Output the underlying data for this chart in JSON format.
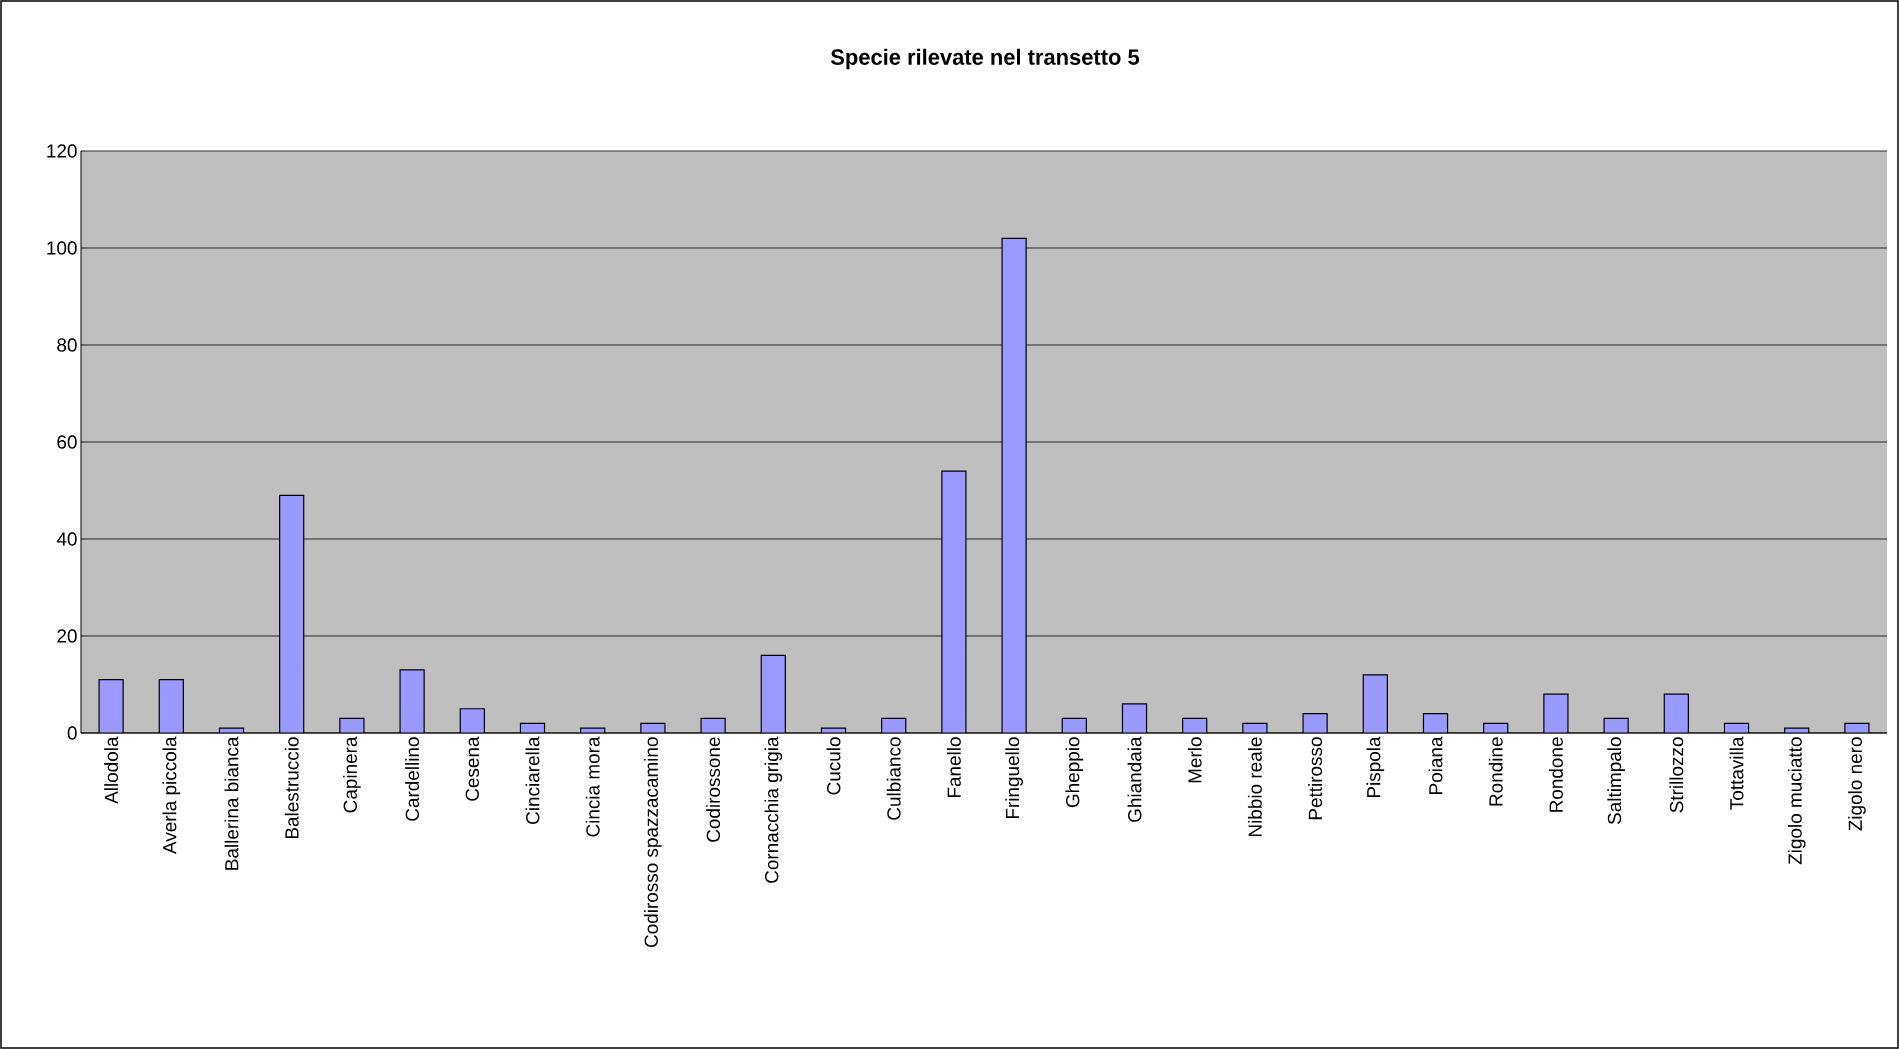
{
  "chart_data": {
    "type": "bar",
    "title": "Specie rilevate nel transetto 5",
    "categories": [
      "Allodola",
      "Averla piccola",
      "Ballerina bianca",
      "Balestruccio",
      "Capinera",
      "Cardellino",
      "Cesena",
      "Cinciarella",
      "Cincia mora",
      "Codirosso spazzacamino",
      "Codirossone",
      "Cornacchia grigia",
      "Cuculo",
      "Culbianco",
      "Fanello",
      "Fringuello",
      "Gheppio",
      "Ghiandaia",
      "Merlo",
      "Nibbio reale",
      "Pettirosso",
      "Pispola",
      "Poiana",
      "Rondine",
      "Rondone",
      "Saltimpalo",
      "Strillozzo",
      "Tottavilla",
      "Zigolo muciatto",
      "Zigolo nero"
    ],
    "values": [
      11,
      11,
      1,
      49,
      3,
      13,
      5,
      2,
      1,
      2,
      3,
      16,
      1,
      3,
      54,
      102,
      3,
      6,
      3,
      2,
      4,
      12,
      4,
      2,
      8,
      3,
      8,
      2,
      1,
      2
    ],
    "color": "#9999ff",
    "ylim": [
      0,
      120
    ],
    "yticks": [
      0,
      20,
      40,
      60,
      80,
      100,
      120
    ],
    "grid": "y"
  }
}
